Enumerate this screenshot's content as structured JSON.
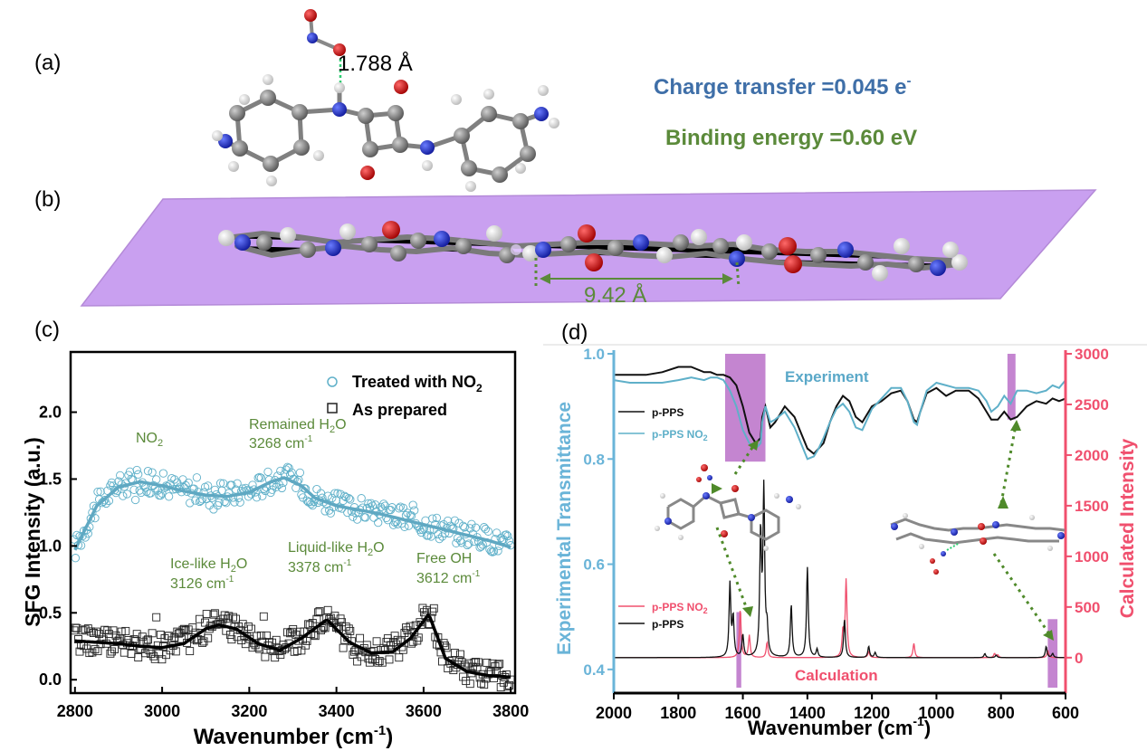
{
  "panels": {
    "a": {
      "label": "(a)",
      "bond_distance": "1.788 Å",
      "charge_transfer": {
        "text": "Charge transfer =0.045 e",
        "sup": "-",
        "color": "#3f6fa8"
      },
      "binding_energy": {
        "text": "Binding energy =0.60 eV",
        "color": "#5b8a3a"
      }
    },
    "b": {
      "label": "(b)",
      "spacing": "9.42 Å",
      "plane_color": "#c9a0f0",
      "spacing_color": "#5b8a3a"
    },
    "c": {
      "label": "(c)"
    },
    "d": {
      "label": "(d)"
    }
  },
  "chart_data": [
    {
      "type": "scatter",
      "panel": "c",
      "xlabel": "Wavenumber (cm",
      "xlabel_sup": "-1",
      "xlabel_end": ")",
      "ylabel": "SFG Intensity (a.u.)",
      "xlim": [
        2790,
        3810
      ],
      "ylim": [
        -0.1,
        2.45
      ],
      "xticks": [
        2800,
        3000,
        3200,
        3400,
        3600,
        3800
      ],
      "yticks": [
        0.0,
        0.5,
        1.0,
        1.5,
        2.0
      ],
      "yticklabels": [
        "0.0",
        "0.5",
        "1.0",
        "1.5",
        "2.0"
      ],
      "legend": {
        "placement": "top-right",
        "entries": [
          {
            "name": "Treated with NO",
            "sub": "2",
            "marker": "circle",
            "color": "#5fb0c9"
          },
          {
            "name": "As prepared",
            "marker": "square",
            "color": "#222222"
          }
        ]
      },
      "series": [
        {
          "name": "Treated with NO2",
          "marker": "circle",
          "color": "#5fb0c9",
          "fit_x": [
            2800,
            2850,
            2900,
            2950,
            3000,
            3050,
            3100,
            3150,
            3200,
            3250,
            3280,
            3320,
            3350,
            3400,
            3450,
            3500,
            3550,
            3600,
            3650,
            3700,
            3750,
            3800
          ],
          "fit_y": [
            0.97,
            1.3,
            1.44,
            1.48,
            1.45,
            1.41,
            1.38,
            1.37,
            1.4,
            1.48,
            1.51,
            1.45,
            1.36,
            1.3,
            1.27,
            1.24,
            1.2,
            1.16,
            1.12,
            1.08,
            1.04,
            0.99
          ]
        },
        {
          "name": "As prepared",
          "marker": "square",
          "color": "#222222",
          "fit_x": [
            2800,
            2850,
            2900,
            2950,
            3000,
            3050,
            3100,
            3130,
            3170,
            3220,
            3270,
            3320,
            3378,
            3430,
            3480,
            3530,
            3570,
            3612,
            3650,
            3700,
            3750,
            3800
          ],
          "fit_y": [
            0.29,
            0.28,
            0.27,
            0.25,
            0.24,
            0.27,
            0.38,
            0.41,
            0.38,
            0.27,
            0.22,
            0.31,
            0.45,
            0.28,
            0.2,
            0.21,
            0.31,
            0.49,
            0.16,
            0.06,
            0.03,
            0.02
          ]
        }
      ],
      "annotations": [
        {
          "text": "NO",
          "sub": "2",
          "color": "#5b8a3a"
        },
        {
          "text": "Remained H",
          "sub": "2",
          "tail": "O",
          "line2": "3268 cm",
          "sup2": "-1",
          "color": "#5b8a3a"
        },
        {
          "text": "Ice-like H",
          "sub": "2",
          "tail": "O",
          "line2": "3126 cm",
          "sup2": "-1",
          "color": "#5b8a3a"
        },
        {
          "text": "Liquid-like H",
          "sub": "2",
          "tail": "O",
          "line2": "3378 cm",
          "sup2": "-1",
          "color": "#5b8a3a"
        },
        {
          "text": "Free OH",
          "line2": "3612 cm",
          "sup2": "-1",
          "color": "#5b8a3a"
        }
      ]
    },
    {
      "type": "line",
      "panel": "d",
      "xlabel": "Wavenumber (cm",
      "xlabel_sup": "-1",
      "xlabel_end": ")",
      "ylabel_left": "Experimental Transmittance",
      "ylabel_right": "Calculated Intensity",
      "xlim": [
        2000,
        600
      ],
      "x_reversed": true,
      "ylim_left": [
        0.355,
        1.0
      ],
      "ylim_right": [
        -350,
        3000
      ],
      "xticks": [
        2000,
        1800,
        1600,
        1400,
        1200,
        1000,
        800,
        600
      ],
      "yticks_left": [
        0.4,
        0.6,
        0.8,
        1.0
      ],
      "yticklabels_left": [
        "0.4",
        "0.6",
        "0.8",
        "1.0"
      ],
      "yticks_right": [
        0,
        500,
        1000,
        1500,
        2000,
        2500,
        3000
      ],
      "left_axis_color": "#6ab4d8",
      "right_axis_color": "#f0506e",
      "highlight_color": "#b05cc0",
      "highlight_bands": [
        {
          "x": [
            1655,
            1530
          ],
          "region": "experiment"
        },
        {
          "x": [
            1620,
            1605
          ],
          "region": "calculation"
        },
        {
          "x": [
            780,
            755
          ],
          "region": "experiment"
        },
        {
          "x": [
            655,
            625
          ],
          "region": "calculation"
        }
      ],
      "text_labels": [
        {
          "text": "Experiment",
          "color": "#5aa8c8"
        },
        {
          "text": "Calculation",
          "color": "#f0506e"
        }
      ],
      "legends": [
        {
          "placement": "upper-left",
          "entries": [
            {
              "name": "p-PPS",
              "color": "#111111"
            },
            {
              "name": "p-PPS NO",
              "sub": "2",
              "color": "#5fb0c9"
            }
          ]
        },
        {
          "placement": "lower-left",
          "entries": [
            {
              "name": "p-PPS NO",
              "sub": "2",
              "color": "#f0506e"
            },
            {
              "name": "p-PPS",
              "color": "#111111"
            }
          ]
        }
      ],
      "series": [
        {
          "name": "p-PPS (experiment)",
          "axis": "left",
          "color": "#111111",
          "x": [
            2000,
            1950,
            1900,
            1850,
            1800,
            1760,
            1720,
            1700,
            1680,
            1660,
            1640,
            1620,
            1600,
            1580,
            1560,
            1545,
            1540,
            1530,
            1515,
            1500,
            1470,
            1440,
            1420,
            1400,
            1380,
            1365,
            1350,
            1330,
            1310,
            1290,
            1270,
            1250,
            1230,
            1200,
            1170,
            1140,
            1110,
            1090,
            1070,
            1060,
            1050,
            1030,
            1000,
            970,
            940,
            900,
            870,
            845,
            830,
            810,
            790,
            770,
            750,
            720,
            690,
            660,
            640,
            620,
            600
          ],
          "y": [
            0.96,
            0.96,
            0.96,
            0.965,
            0.975,
            0.975,
            0.965,
            0.965,
            0.96,
            0.96,
            0.955,
            0.94,
            0.9,
            0.85,
            0.83,
            0.84,
            0.88,
            0.9,
            0.86,
            0.87,
            0.9,
            0.88,
            0.85,
            0.82,
            0.81,
            0.82,
            0.83,
            0.87,
            0.9,
            0.92,
            0.91,
            0.88,
            0.87,
            0.9,
            0.91,
            0.925,
            0.93,
            0.91,
            0.875,
            0.87,
            0.89,
            0.925,
            0.935,
            0.92,
            0.93,
            0.93,
            0.915,
            0.89,
            0.875,
            0.875,
            0.89,
            0.875,
            0.88,
            0.9,
            0.91,
            0.905,
            0.915,
            0.91,
            0.915
          ]
        },
        {
          "name": "p-PPS NO2 (experiment)",
          "axis": "left",
          "color": "#5fb0c9",
          "x": [
            2000,
            1950,
            1900,
            1850,
            1800,
            1760,
            1720,
            1700,
            1680,
            1660,
            1640,
            1620,
            1600,
            1580,
            1560,
            1545,
            1540,
            1530,
            1515,
            1500,
            1470,
            1440,
            1420,
            1400,
            1380,
            1365,
            1350,
            1330,
            1310,
            1290,
            1270,
            1250,
            1230,
            1200,
            1170,
            1140,
            1110,
            1090,
            1070,
            1060,
            1050,
            1030,
            1000,
            970,
            940,
            900,
            870,
            845,
            830,
            810,
            790,
            770,
            750,
            720,
            690,
            660,
            640,
            620,
            600
          ],
          "y": [
            0.95,
            0.945,
            0.945,
            0.945,
            0.95,
            0.955,
            0.95,
            0.955,
            0.955,
            0.95,
            0.93,
            0.9,
            0.855,
            0.83,
            0.82,
            0.83,
            0.87,
            0.9,
            0.87,
            0.875,
            0.89,
            0.86,
            0.83,
            0.8,
            0.805,
            0.82,
            0.84,
            0.87,
            0.895,
            0.905,
            0.89,
            0.86,
            0.855,
            0.895,
            0.915,
            0.935,
            0.935,
            0.91,
            0.87,
            0.865,
            0.89,
            0.93,
            0.945,
            0.94,
            0.935,
            0.935,
            0.93,
            0.91,
            0.89,
            0.9,
            0.92,
            0.905,
            0.93,
            0.93,
            0.925,
            0.93,
            0.94,
            0.935,
            0.95
          ]
        },
        {
          "name": "p-PPS NO2 (calculation)",
          "axis": "right",
          "color": "#f0506e",
          "peaks": [
            [
              1608,
              470
            ],
            [
              1580,
              220
            ],
            [
              1525,
              150
            ],
            [
              1290,
              240
            ],
            [
              1280,
              760
            ],
            [
              1210,
              60
            ],
            [
              1070,
              140
            ],
            [
              820,
              40
            ],
            [
              810,
              25
            ],
            [
              655,
              70
            ]
          ]
        },
        {
          "name": "p-PPS (calculation)",
          "axis": "right",
          "color": "#111111",
          "peaks": [
            [
              1640,
              720
            ],
            [
              1630,
              380
            ],
            [
              1600,
              220
            ],
            [
              1545,
              1200
            ],
            [
              1535,
              1620
            ],
            [
              1525,
              250
            ],
            [
              1450,
              520
            ],
            [
              1400,
              890
            ],
            [
              1370,
              80
            ],
            [
              1285,
              380
            ],
            [
              1210,
              110
            ],
            [
              1190,
              50
            ],
            [
              850,
              40
            ],
            [
              815,
              25
            ],
            [
              660,
              110
            ],
            [
              640,
              40
            ]
          ]
        }
      ]
    }
  ]
}
